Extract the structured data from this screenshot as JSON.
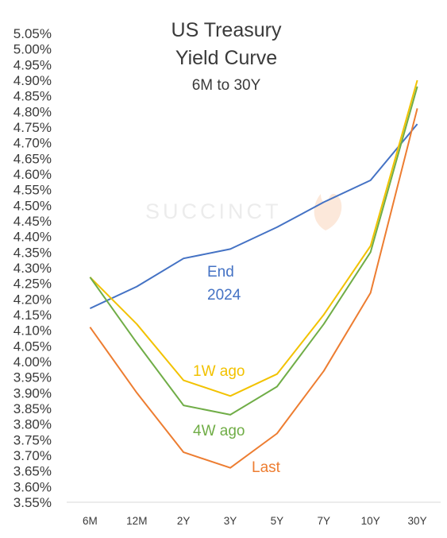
{
  "chart_data": {
    "type": "line",
    "title": "US Treasury",
    "title_line2": "Yield Curve",
    "subtitle": "6M to 30Y",
    "watermark": "SUCCINCT",
    "categories": [
      "6M",
      "12M",
      "2Y",
      "3Y",
      "5Y",
      "7Y",
      "10Y",
      "30Y"
    ],
    "ylim": [
      3.55,
      5.05
    ],
    "ystep": 0.05,
    "y_tick_suffix": "%",
    "grid": false,
    "series": [
      {
        "name": "End 2024",
        "label_lines": [
          "End",
          "2024"
        ],
        "color": "#4472c4",
        "values": [
          4.17,
          4.24,
          4.33,
          4.36,
          4.43,
          4.51,
          4.58,
          4.76
        ]
      },
      {
        "name": "1W ago",
        "label_lines": [
          "1W ago"
        ],
        "color": "#f2c200",
        "values": [
          4.27,
          4.12,
          3.94,
          3.89,
          3.96,
          4.15,
          4.37,
          4.9
        ]
      },
      {
        "name": "4W ago",
        "label_lines": [
          "4W ago"
        ],
        "color": "#70ad47",
        "values": [
          4.27,
          4.06,
          3.86,
          3.83,
          3.92,
          4.12,
          4.35,
          4.88
        ]
      },
      {
        "name": "Last",
        "label_lines": [
          "Last"
        ],
        "color": "#ed7d31",
        "values": [
          4.11,
          3.9,
          3.71,
          3.66,
          3.77,
          3.97,
          4.22,
          4.81
        ]
      }
    ]
  }
}
